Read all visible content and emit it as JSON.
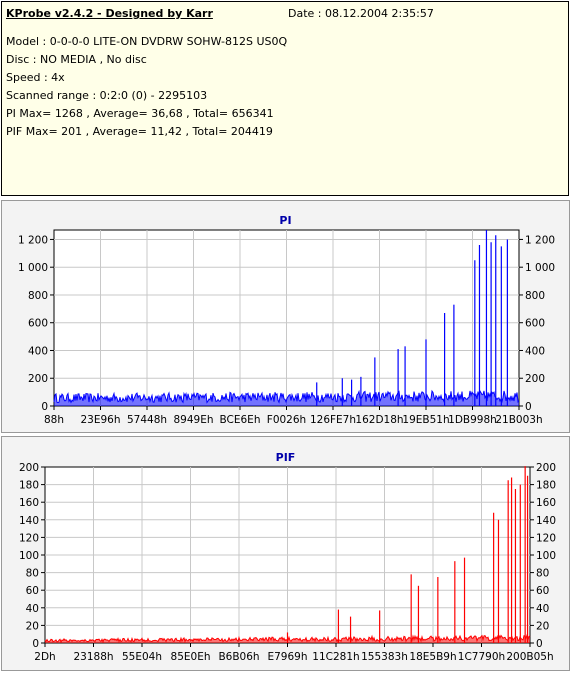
{
  "report": {
    "title": "KProbe v2.4.2 - Designed by Karr",
    "date": "Date : 08.12.2004 2:35:57",
    "model": "Model : 0-0-0-0 LITE-ON DVDRW SOHW-812S  US0Q",
    "disc": "Disc : NO MEDIA , No disc",
    "speed": "Speed : 4x",
    "range": "Scanned range : 0:2:0 (0) - 2295103",
    "pi_stats": "PI Max= 1268 , Average= 36,68 , Total= 656341",
    "pif_stats": "PIF Max= 201 , Average= 11,42 , Total= 204419"
  },
  "colors": {
    "pi": "#0000ff",
    "pif": "#ff0000",
    "title": "#0000aa",
    "plot_bg": "#ffffff",
    "grid": "#c8c8c8"
  },
  "chart_data": [
    {
      "type": "line",
      "title": "PI",
      "ylim": [
        0,
        1268
      ],
      "yticks": [
        0,
        200,
        400,
        600,
        800,
        1000,
        1200
      ],
      "ytick_labels": [
        "0",
        "200",
        "400",
        "600",
        "800",
        "1 000",
        "1 200"
      ],
      "xtick_labels": [
        "88h",
        "23E96h",
        "57448h",
        "8949Eh",
        "BCE6Eh",
        "F0026h",
        "126FE7h",
        "162D18h",
        "19EB51h",
        "1DB998h",
        "21B003h"
      ],
      "grid": true,
      "baseline": [
        60,
        75
      ],
      "spikes": [
        {
          "x": 0.565,
          "y": 170
        },
        {
          "x": 0.62,
          "y": 200
        },
        {
          "x": 0.64,
          "y": 190
        },
        {
          "x": 0.66,
          "y": 210
        },
        {
          "x": 0.69,
          "y": 350
        },
        {
          "x": 0.74,
          "y": 410
        },
        {
          "x": 0.755,
          "y": 430
        },
        {
          "x": 0.8,
          "y": 480
        },
        {
          "x": 0.84,
          "y": 670
        },
        {
          "x": 0.86,
          "y": 730
        },
        {
          "x": 0.905,
          "y": 1050
        },
        {
          "x": 0.915,
          "y": 1160
        },
        {
          "x": 0.93,
          "y": 1268
        },
        {
          "x": 0.94,
          "y": 1180
        },
        {
          "x": 0.95,
          "y": 1230
        },
        {
          "x": 0.962,
          "y": 1150
        },
        {
          "x": 0.975,
          "y": 1200
        }
      ]
    },
    {
      "type": "line",
      "title": "PIF",
      "ylim": [
        0,
        200
      ],
      "yticks": [
        0,
        20,
        40,
        60,
        80,
        100,
        120,
        140,
        160,
        180,
        200
      ],
      "ytick_labels": [
        "0",
        "20",
        "40",
        "60",
        "80",
        "100",
        "120",
        "140",
        "160",
        "180",
        "200"
      ],
      "xtick_labels": [
        "2Dh",
        "23188h",
        "55E04h",
        "85E0Eh",
        "B6B06h",
        "E7969h",
        "11C281h",
        "155383h",
        "18E5B9h",
        "1C7790h",
        "200B05h"
      ],
      "grid": true,
      "baseline": [
        3,
        6
      ],
      "spikes": [
        {
          "x": 0.5,
          "y": 12
        },
        {
          "x": 0.605,
          "y": 38
        },
        {
          "x": 0.63,
          "y": 30
        },
        {
          "x": 0.69,
          "y": 37
        },
        {
          "x": 0.755,
          "y": 78
        },
        {
          "x": 0.77,
          "y": 65
        },
        {
          "x": 0.81,
          "y": 75
        },
        {
          "x": 0.845,
          "y": 93
        },
        {
          "x": 0.865,
          "y": 97
        },
        {
          "x": 0.925,
          "y": 148
        },
        {
          "x": 0.935,
          "y": 140
        },
        {
          "x": 0.955,
          "y": 185
        },
        {
          "x": 0.962,
          "y": 188
        },
        {
          "x": 0.97,
          "y": 175
        },
        {
          "x": 0.98,
          "y": 180
        },
        {
          "x": 0.99,
          "y": 201
        },
        {
          "x": 0.995,
          "y": 190
        }
      ]
    }
  ]
}
